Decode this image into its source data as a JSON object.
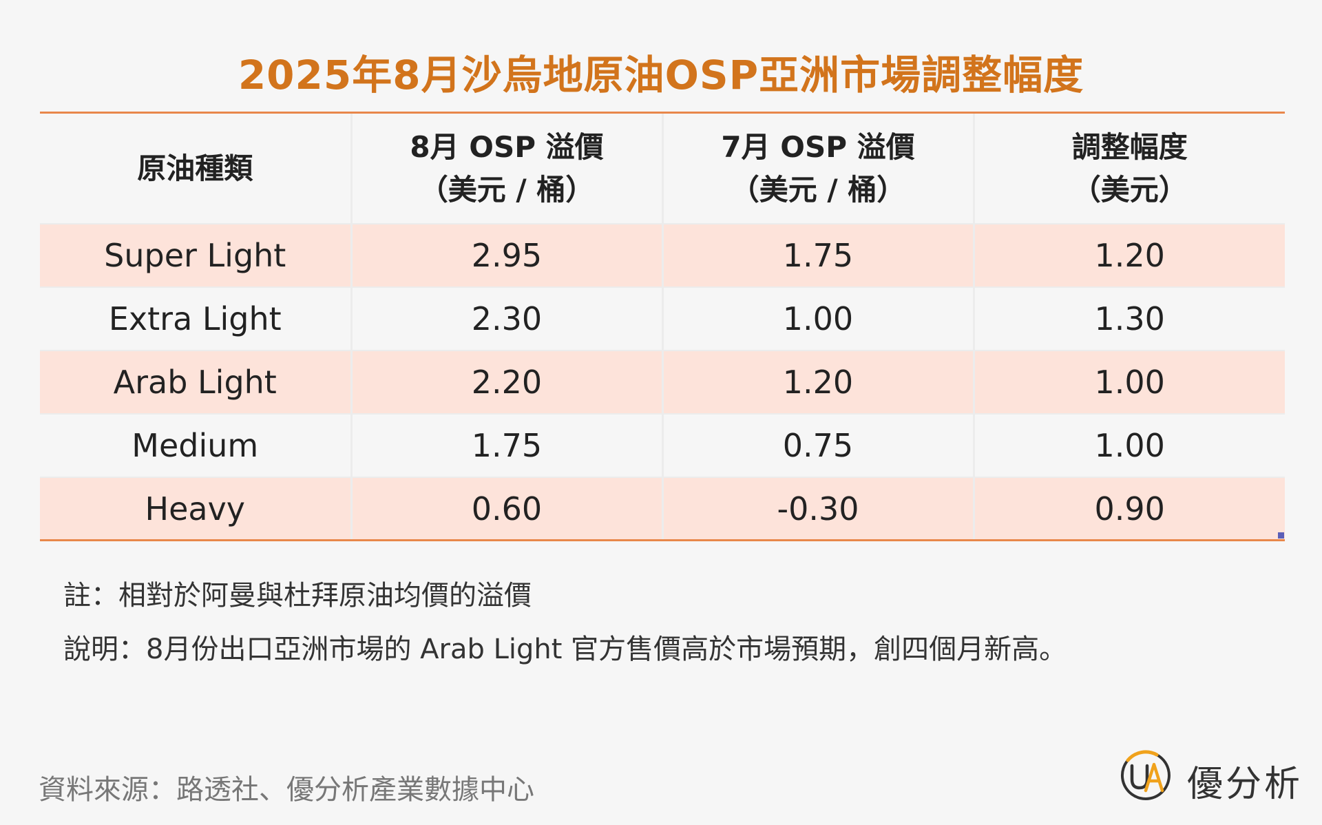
{
  "chart_data": {
    "type": "table",
    "title": "2025年8月沙烏地原油OSP亞洲市場調整幅度",
    "columns": [
      {
        "line1": "原油種類",
        "line2": ""
      },
      {
        "line1": "8月 OSP 溢價",
        "line2": "（美元 / 桶）"
      },
      {
        "line1": "7月 OSP 溢價",
        "line2": "（美元 / 桶）"
      },
      {
        "line1": "調整幅度",
        "line2": "（美元）"
      }
    ],
    "rows": [
      {
        "grade": "Super Light",
        "aug": "2.95",
        "jul": "1.75",
        "change": "1.20"
      },
      {
        "grade": "Extra Light",
        "aug": "2.30",
        "jul": "1.00",
        "change": "1.30"
      },
      {
        "grade": "Arab Light",
        "aug": "2.20",
        "jul": "1.20",
        "change": "1.00"
      },
      {
        "grade": "Medium",
        "aug": "1.75",
        "jul": "0.75",
        "change": "1.00"
      },
      {
        "grade": "Heavy",
        "aug": "0.60",
        "jul": "-0.30",
        "change": "0.90"
      }
    ]
  },
  "notes": {
    "note_1": "註：相對於阿曼與杜拜原油均價的溢價",
    "note_2": "說明：8月份出口亞洲市場的 Arab Light 官方售價高於市場預期，創四個月新高。"
  },
  "footer": {
    "source": "資料來源：路透社、優分析產業數據中心",
    "brand_name": "優分析",
    "brand_icon": "ua-logo-icon"
  },
  "colors": {
    "title": "#d2741c",
    "rule": "#e8874a",
    "row_shade": "#fde3da",
    "background": "#f6f6f6",
    "logo_ring": "#f0a21c",
    "logo_letters": "#333333"
  }
}
